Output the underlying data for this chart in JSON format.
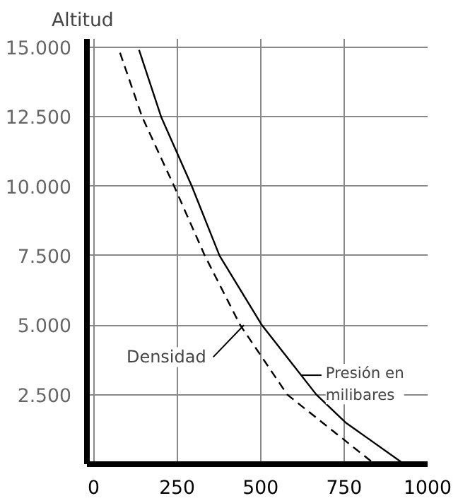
{
  "chart_data": {
    "type": "line",
    "ylabel": "Altitud",
    "series": [
      {
        "color": "#000000",
        "line_style": "solid",
        "x": [
          136,
          202,
          294,
          377,
          504,
          667,
          754,
          930
        ],
        "values": [
          14900,
          12500,
          10000,
          7500,
          5000,
          2500,
          1500,
          0
        ]
      },
      {
        "color": "#000000",
        "line_style": "dashed",
        "x": [
          79,
          145,
          241,
          333,
          439,
          580,
          785,
          842
        ],
        "values": [
          14800,
          12500,
          10000,
          7500,
          5000,
          2500,
          540,
          0
        ]
      }
    ],
    "xlim": [
      -20,
      1000
    ],
    "ylim": [
      0,
      15300
    ],
    "xticks": [
      0,
      250,
      500,
      750,
      1000
    ],
    "yticks": [
      {
        "value": 2500,
        "label": "2.500"
      },
      {
        "value": 5000,
        "label": "5.000"
      },
      {
        "value": 7500,
        "label": "7.500"
      },
      {
        "value": 10000,
        "label": "10.000"
      },
      {
        "value": 12500,
        "label": "12.500"
      },
      {
        "value": 15000,
        "label": "15.000"
      }
    ],
    "grid": true,
    "marker": "none",
    "annotations": [
      {
        "text": "Densidad",
        "x": 450,
        "y": 5000
      },
      {
        "text": "Presión en milibares",
        "x": 621,
        "y": 3200
      }
    ]
  }
}
